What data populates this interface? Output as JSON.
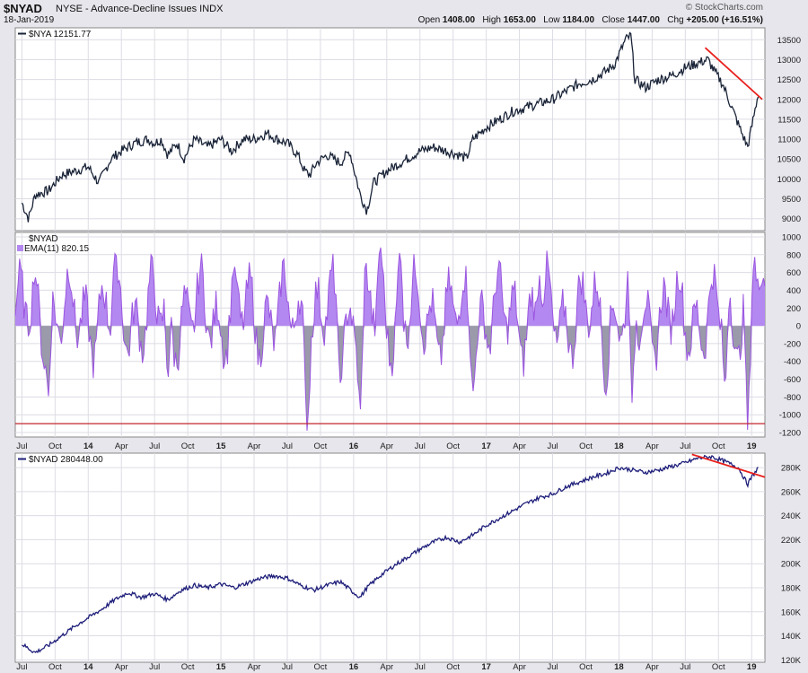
{
  "header": {
    "symbol": "$NYAD",
    "description": "NYSE - Advance-Decline Issues  INDX",
    "date": "18-Jan-2019",
    "brand": "© StockCharts.com",
    "open_label": "Open",
    "open": "1408.00",
    "high_label": "High",
    "high": "1653.00",
    "low_label": "Low",
    "low": "1184.00",
    "close_label": "Close",
    "close": "1447.00",
    "chg_label": "Chg",
    "chg": "+205.00 (+16.51%)"
  },
  "colors": {
    "line_dark": "#1a2438",
    "line_navy": "#1e1e7a",
    "histogram_pos": "#b388f0",
    "histogram_neg": "#9a9aaa",
    "histogram_line": "#9b55e0",
    "trendline": "#e8201c",
    "ref_line": "#c0262b",
    "grid": "#dcdce4"
  },
  "chart_data": [
    {
      "name": "nya-panel",
      "type": "line",
      "label": "$NYA 12151.77",
      "ylim": [
        8700,
        13800
      ],
      "yticks": [
        9000,
        9500,
        10000,
        10500,
        11000,
        11500,
        12000,
        12500,
        13000,
        13500
      ],
      "x": [
        2013.5,
        2013.55,
        2013.6,
        2013.7,
        2013.8,
        2013.9,
        2014.0,
        2014.08,
        2014.17,
        2014.25,
        2014.35,
        2014.45,
        2014.5,
        2014.55,
        2014.6,
        2014.67,
        2014.72,
        2014.8,
        2014.9,
        2015.0,
        2015.08,
        2015.17,
        2015.25,
        2015.35,
        2015.42,
        2015.5,
        2015.58,
        2015.63,
        2015.67,
        2015.72,
        2015.8,
        2015.9,
        2015.97,
        2016.05,
        2016.1,
        2016.15,
        2016.25,
        2016.35,
        2016.45,
        2016.5,
        2016.6,
        2016.7,
        2016.8,
        2016.85,
        2016.9,
        2017.0,
        2017.1,
        2017.2,
        2017.3,
        2017.4,
        2017.5,
        2017.6,
        2017.7,
        2017.8,
        2017.9,
        2017.97,
        2018.05,
        2018.09,
        2018.12,
        2018.2,
        2018.3,
        2018.4,
        2018.5,
        2018.58,
        2018.67,
        2018.72,
        2018.78,
        2018.85,
        2018.92,
        2018.97,
        2019.0,
        2019.05
      ],
      "y": [
        9400,
        9000,
        9600,
        9700,
        10100,
        10200,
        10300,
        9900,
        10500,
        10700,
        10900,
        11000,
        10900,
        11000,
        10600,
        10900,
        10500,
        11000,
        10800,
        11000,
        10700,
        11000,
        11000,
        11150,
        11000,
        10900,
        10600,
        10200,
        10100,
        10400,
        10600,
        10400,
        10700,
        9600,
        9200,
        9900,
        10200,
        10400,
        10600,
        10700,
        10800,
        10700,
        10600,
        10500,
        11000,
        11300,
        11500,
        11700,
        11800,
        11900,
        12000,
        12200,
        12400,
        12500,
        12700,
        12900,
        13500,
        13600,
        12500,
        12300,
        12500,
        12600,
        12800,
        12900,
        13000,
        12700,
        12400,
        11800,
        11200,
        10800,
        11300,
        12150
      ],
      "trendline": {
        "x": [
          2018.65,
          2019.08
        ],
        "y": [
          13300,
          12000
        ]
      },
      "xticks": [
        "Jul",
        "Oct",
        "14",
        "Apr",
        "Jul",
        "Oct",
        "15",
        "Apr",
        "Jul",
        "Oct",
        "16",
        "Apr",
        "Jul",
        "Oct",
        "17",
        "Apr",
        "Jul",
        "Oct",
        "18",
        "Apr",
        "Jul",
        "Oct",
        "19"
      ]
    },
    {
      "name": "nyad-histogram-panel",
      "type": "area",
      "label": "$NYAD",
      "ema_label": "EMA(11) 820.15",
      "ylim": [
        -1250,
        1050
      ],
      "yticks": [
        1000,
        800,
        600,
        400,
        200,
        0,
        -200,
        -400,
        -600,
        -800,
        -1000,
        -1200
      ],
      "ref_level": -1100,
      "x_range": [
        2013.45,
        2019.1
      ],
      "extremes": [
        {
          "x": 2013.6,
          "y": 550
        },
        {
          "x": 2013.7,
          "y": -800
        },
        {
          "x": 2014.2,
          "y": 820
        },
        {
          "x": 2014.6,
          "y": -700
        },
        {
          "x": 2015.1,
          "y": 650
        },
        {
          "x": 2015.65,
          "y": -1200
        },
        {
          "x": 2015.9,
          "y": -650
        },
        {
          "x": 2016.05,
          "y": -1000
        },
        {
          "x": 2016.2,
          "y": 950
        },
        {
          "x": 2016.35,
          "y": 900
        },
        {
          "x": 2016.9,
          "y": -750
        },
        {
          "x": 2017.4,
          "y": 600
        },
        {
          "x": 2017.9,
          "y": -800
        },
        {
          "x": 2018.1,
          "y": -950
        },
        {
          "x": 2018.8,
          "y": -800
        },
        {
          "x": 2018.97,
          "y": -1200
        },
        {
          "x": 2019.02,
          "y": 880
        }
      ]
    },
    {
      "name": "nyad-cumulative-panel",
      "type": "line",
      "label": "$NYAD 280448.00",
      "ylim": [
        118000,
        292000
      ],
      "yticks": [
        120000,
        140000,
        160000,
        180000,
        200000,
        220000,
        240000,
        260000,
        280000
      ],
      "ytick_labels": [
        "120K",
        "140K",
        "160K",
        "180K",
        "200K",
        "220K",
        "240K",
        "260K",
        "280K"
      ],
      "x": [
        2013.5,
        2013.6,
        2013.7,
        2013.8,
        2013.9,
        2014.0,
        2014.1,
        2014.2,
        2014.3,
        2014.4,
        2014.5,
        2014.6,
        2014.7,
        2014.8,
        2014.9,
        2015.0,
        2015.1,
        2015.2,
        2015.3,
        2015.4,
        2015.5,
        2015.6,
        2015.7,
        2015.8,
        2015.9,
        2016.0,
        2016.05,
        2016.1,
        2016.2,
        2016.3,
        2016.4,
        2016.5,
        2016.6,
        2016.7,
        2016.8,
        2016.9,
        2017.0,
        2017.1,
        2017.2,
        2017.3,
        2017.4,
        2017.5,
        2017.6,
        2017.7,
        2017.8,
        2017.9,
        2018.0,
        2018.1,
        2018.2,
        2018.3,
        2018.4,
        2018.5,
        2018.6,
        2018.7,
        2018.8,
        2018.9,
        2018.97,
        2019.0,
        2019.05
      ],
      "y": [
        133000,
        126000,
        132000,
        140000,
        148000,
        155000,
        162000,
        170000,
        176000,
        172000,
        175000,
        170000,
        178000,
        182000,
        180000,
        183000,
        180000,
        184000,
        188000,
        190000,
        188000,
        182000,
        178000,
        182000,
        185000,
        176000,
        172000,
        180000,
        190000,
        198000,
        205000,
        212000,
        218000,
        222000,
        218000,
        224000,
        232000,
        238000,
        244000,
        250000,
        255000,
        258000,
        264000,
        268000,
        272000,
        275000,
        280000,
        278000,
        276000,
        278000,
        281000,
        284000,
        288000,
        289000,
        285000,
        280000,
        266000,
        272000,
        280000
      ],
      "trendline": {
        "x": [
          2018.55,
          2019.1
        ],
        "y": [
          291000,
          272000
        ]
      },
      "xticks": [
        "Jul",
        "Oct",
        "14",
        "Apr",
        "Jul",
        "Oct",
        "15",
        "Apr",
        "Jul",
        "Oct",
        "16",
        "Apr",
        "Jul",
        "Oct",
        "17",
        "Apr",
        "Jul",
        "Oct",
        "18",
        "Apr",
        "Jul",
        "Oct",
        "19"
      ]
    }
  ]
}
